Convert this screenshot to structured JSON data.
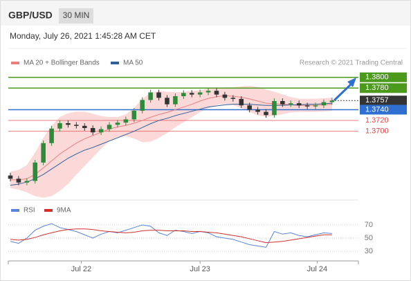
{
  "header": {
    "symbol": "GBP/USD",
    "interval": "30 MIN",
    "timestamp": "Monday, July 26, 2021 1:45:28 AM CET",
    "credit": "Research © 2021 Trading Central"
  },
  "chart_data": [
    {
      "type": "candlestick",
      "xlim": [
        -0.25,
        42.2
      ],
      "ylim": [
        1.357,
        1.3815
      ],
      "up_color": "#2e8b3a",
      "down_color": "#333333",
      "open": [
        1.3618,
        1.3612,
        1.3605,
        1.3608,
        1.3642,
        1.3678,
        1.3705,
        1.3715,
        1.3712,
        1.371,
        1.3706,
        1.3698,
        1.3704,
        1.3712,
        1.3716,
        1.3722,
        1.3738,
        1.3758,
        1.3772,
        1.3762,
        1.375,
        1.3765,
        1.3771,
        1.3768,
        1.3772,
        1.3775,
        1.3768,
        1.3762,
        1.376,
        1.3748,
        1.374,
        1.3736,
        1.373,
        1.3756,
        1.375,
        1.3752,
        1.3748,
        1.3746,
        1.3748,
        1.3754
      ],
      "high": [
        1.3623,
        1.3617,
        1.3613,
        1.3647,
        1.3683,
        1.371,
        1.372,
        1.372,
        1.3717,
        1.3715,
        1.3711,
        1.3709,
        1.3717,
        1.3721,
        1.3727,
        1.3743,
        1.3763,
        1.3777,
        1.3777,
        1.3767,
        1.377,
        1.3776,
        1.3776,
        1.3777,
        1.378,
        1.378,
        1.3773,
        1.3767,
        1.3765,
        1.3753,
        1.3745,
        1.3741,
        1.3761,
        1.3761,
        1.3757,
        1.3757,
        1.3753,
        1.3753,
        1.3759,
        1.3762
      ],
      "low": [
        1.3607,
        1.36,
        1.36,
        1.3603,
        1.3637,
        1.3673,
        1.37,
        1.3707,
        1.3705,
        1.3701,
        1.3693,
        1.3693,
        1.3699,
        1.3707,
        1.3711,
        1.3717,
        1.3733,
        1.3753,
        1.3757,
        1.3745,
        1.3745,
        1.376,
        1.3763,
        1.3763,
        1.3767,
        1.3763,
        1.3757,
        1.3755,
        1.3743,
        1.3735,
        1.3731,
        1.3725,
        1.3725,
        1.3745,
        1.3745,
        1.3743,
        1.3741,
        1.3741,
        1.3743,
        1.3749
      ],
      "close": [
        1.3612,
        1.3605,
        1.3608,
        1.3642,
        1.3678,
        1.3705,
        1.3715,
        1.3712,
        1.371,
        1.3706,
        1.3698,
        1.3704,
        1.3712,
        1.3716,
        1.3722,
        1.3738,
        1.3758,
        1.3772,
        1.3762,
        1.375,
        1.3765,
        1.3771,
        1.3768,
        1.3772,
        1.3775,
        1.3768,
        1.3762,
        1.376,
        1.3748,
        1.374,
        1.3736,
        1.373,
        1.3756,
        1.375,
        1.3752,
        1.3748,
        1.3746,
        1.3748,
        1.3754,
        1.3757
      ],
      "series": [
        {
          "name": "MA 20 + Bollinger Bands",
          "color": "#e88080",
          "band_color": "#fcd9d9",
          "values": [
            1.361,
            1.361,
            1.3612,
            1.362,
            1.3632,
            1.3645,
            1.3658,
            1.3668,
            1.3678,
            1.3686,
            1.3692,
            1.3698,
            1.3704,
            1.3708,
            1.3711,
            1.3715,
            1.372,
            1.3726,
            1.3731,
            1.3735,
            1.374,
            1.3745,
            1.375,
            1.3756,
            1.3761,
            1.3764,
            1.3766,
            1.3765,
            1.3763,
            1.376,
            1.3756,
            1.3752,
            1.3751,
            1.375,
            1.3749,
            1.3748,
            1.3748,
            1.3748,
            1.3749,
            1.375
          ],
          "upper": [
            1.3625,
            1.3628,
            1.3637,
            1.366,
            1.3687,
            1.371,
            1.3726,
            1.3733,
            1.3736,
            1.3736,
            1.3732,
            1.3728,
            1.3726,
            1.3726,
            1.3731,
            1.3743,
            1.376,
            1.3771,
            1.3774,
            1.3773,
            1.3772,
            1.3773,
            1.3774,
            1.3776,
            1.3779,
            1.3779,
            1.3781,
            1.3781,
            1.3783,
            1.3784,
            1.3782,
            1.3777,
            1.3773,
            1.3768,
            1.3763,
            1.376,
            1.376,
            1.376,
            1.3761,
            1.3762
          ],
          "lower": [
            1.3595,
            1.3592,
            1.3587,
            1.358,
            1.3577,
            1.358,
            1.359,
            1.3603,
            1.362,
            1.3636,
            1.3652,
            1.3668,
            1.3682,
            1.369,
            1.3691,
            1.3687,
            1.368,
            1.3681,
            1.3688,
            1.3697,
            1.3708,
            1.3717,
            1.3726,
            1.3736,
            1.3743,
            1.3749,
            1.3751,
            1.3749,
            1.3743,
            1.3736,
            1.373,
            1.3727,
            1.3729,
            1.3732,
            1.3735,
            1.3736,
            1.3736,
            1.3736,
            1.3737,
            1.3738
          ]
        },
        {
          "name": "MA 50",
          "color": "#2f5f98",
          "values": [
            1.36,
            1.3602,
            1.3606,
            1.3612,
            1.362,
            1.363,
            1.364,
            1.365,
            1.3658,
            1.3665,
            1.367,
            1.3676,
            1.3682,
            1.3688,
            1.3694,
            1.37,
            1.3707,
            1.3714,
            1.372,
            1.3724,
            1.3729,
            1.3733,
            1.3737,
            1.3741,
            1.3745,
            1.3747,
            1.3749,
            1.375,
            1.375,
            1.375,
            1.3749,
            1.3748,
            1.3748,
            1.3748,
            1.3749,
            1.3749,
            1.375,
            1.375,
            1.3751,
            1.3752
          ]
        }
      ],
      "levels": [
        {
          "value": 1.38,
          "label": "1.3800",
          "color": "#4c9a1c",
          "filled": true
        },
        {
          "value": 1.378,
          "label": "1.3780",
          "color": "#4c9a1c",
          "filled": true
        },
        {
          "value": 1.3757,
          "label": "1.3757",
          "color": "#333333",
          "filled": true,
          "current": true
        },
        {
          "value": 1.374,
          "label": "1.3740",
          "color": "#2f6fd0",
          "filled": true
        },
        {
          "value": 1.372,
          "label": "1.3720",
          "color": "#e04848",
          "filled": false
        },
        {
          "value": 1.37,
          "label": "1.3700",
          "color": "#e04848",
          "filled": false
        }
      ]
    },
    {
      "type": "line",
      "xlim": [
        -0.25,
        42.2
      ],
      "ylim": [
        20,
        80
      ],
      "yticks": [
        30,
        50,
        70
      ],
      "grid": true,
      "xticks": [
        {
          "value": 8.6,
          "label": "Jul 22"
        },
        {
          "value": 23,
          "label": "Jul 23"
        },
        {
          "value": 37.2,
          "label": "Jul 24"
        }
      ],
      "series": [
        {
          "name": "RSI",
          "color": "#5b82d6",
          "values": [
            45,
            42,
            50,
            62,
            68,
            72,
            66,
            63,
            60,
            55,
            50,
            56,
            60,
            58,
            62,
            66,
            70,
            68,
            58,
            54,
            62,
            60,
            57,
            60,
            58,
            52,
            50,
            48,
            44,
            40,
            38,
            36,
            60,
            56,
            58,
            54,
            52,
            55,
            58,
            57
          ]
        },
        {
          "name": "9MA",
          "color": "#d32f2f",
          "values": [
            48,
            47,
            48,
            51,
            55,
            58,
            61,
            63,
            64,
            64,
            63,
            61,
            60,
            59,
            58,
            59,
            61,
            62,
            62,
            61,
            61,
            61,
            60,
            60,
            59,
            58,
            56,
            54,
            52,
            49,
            46,
            43,
            44,
            45,
            47,
            49,
            51,
            53,
            55,
            55
          ]
        }
      ]
    }
  ]
}
